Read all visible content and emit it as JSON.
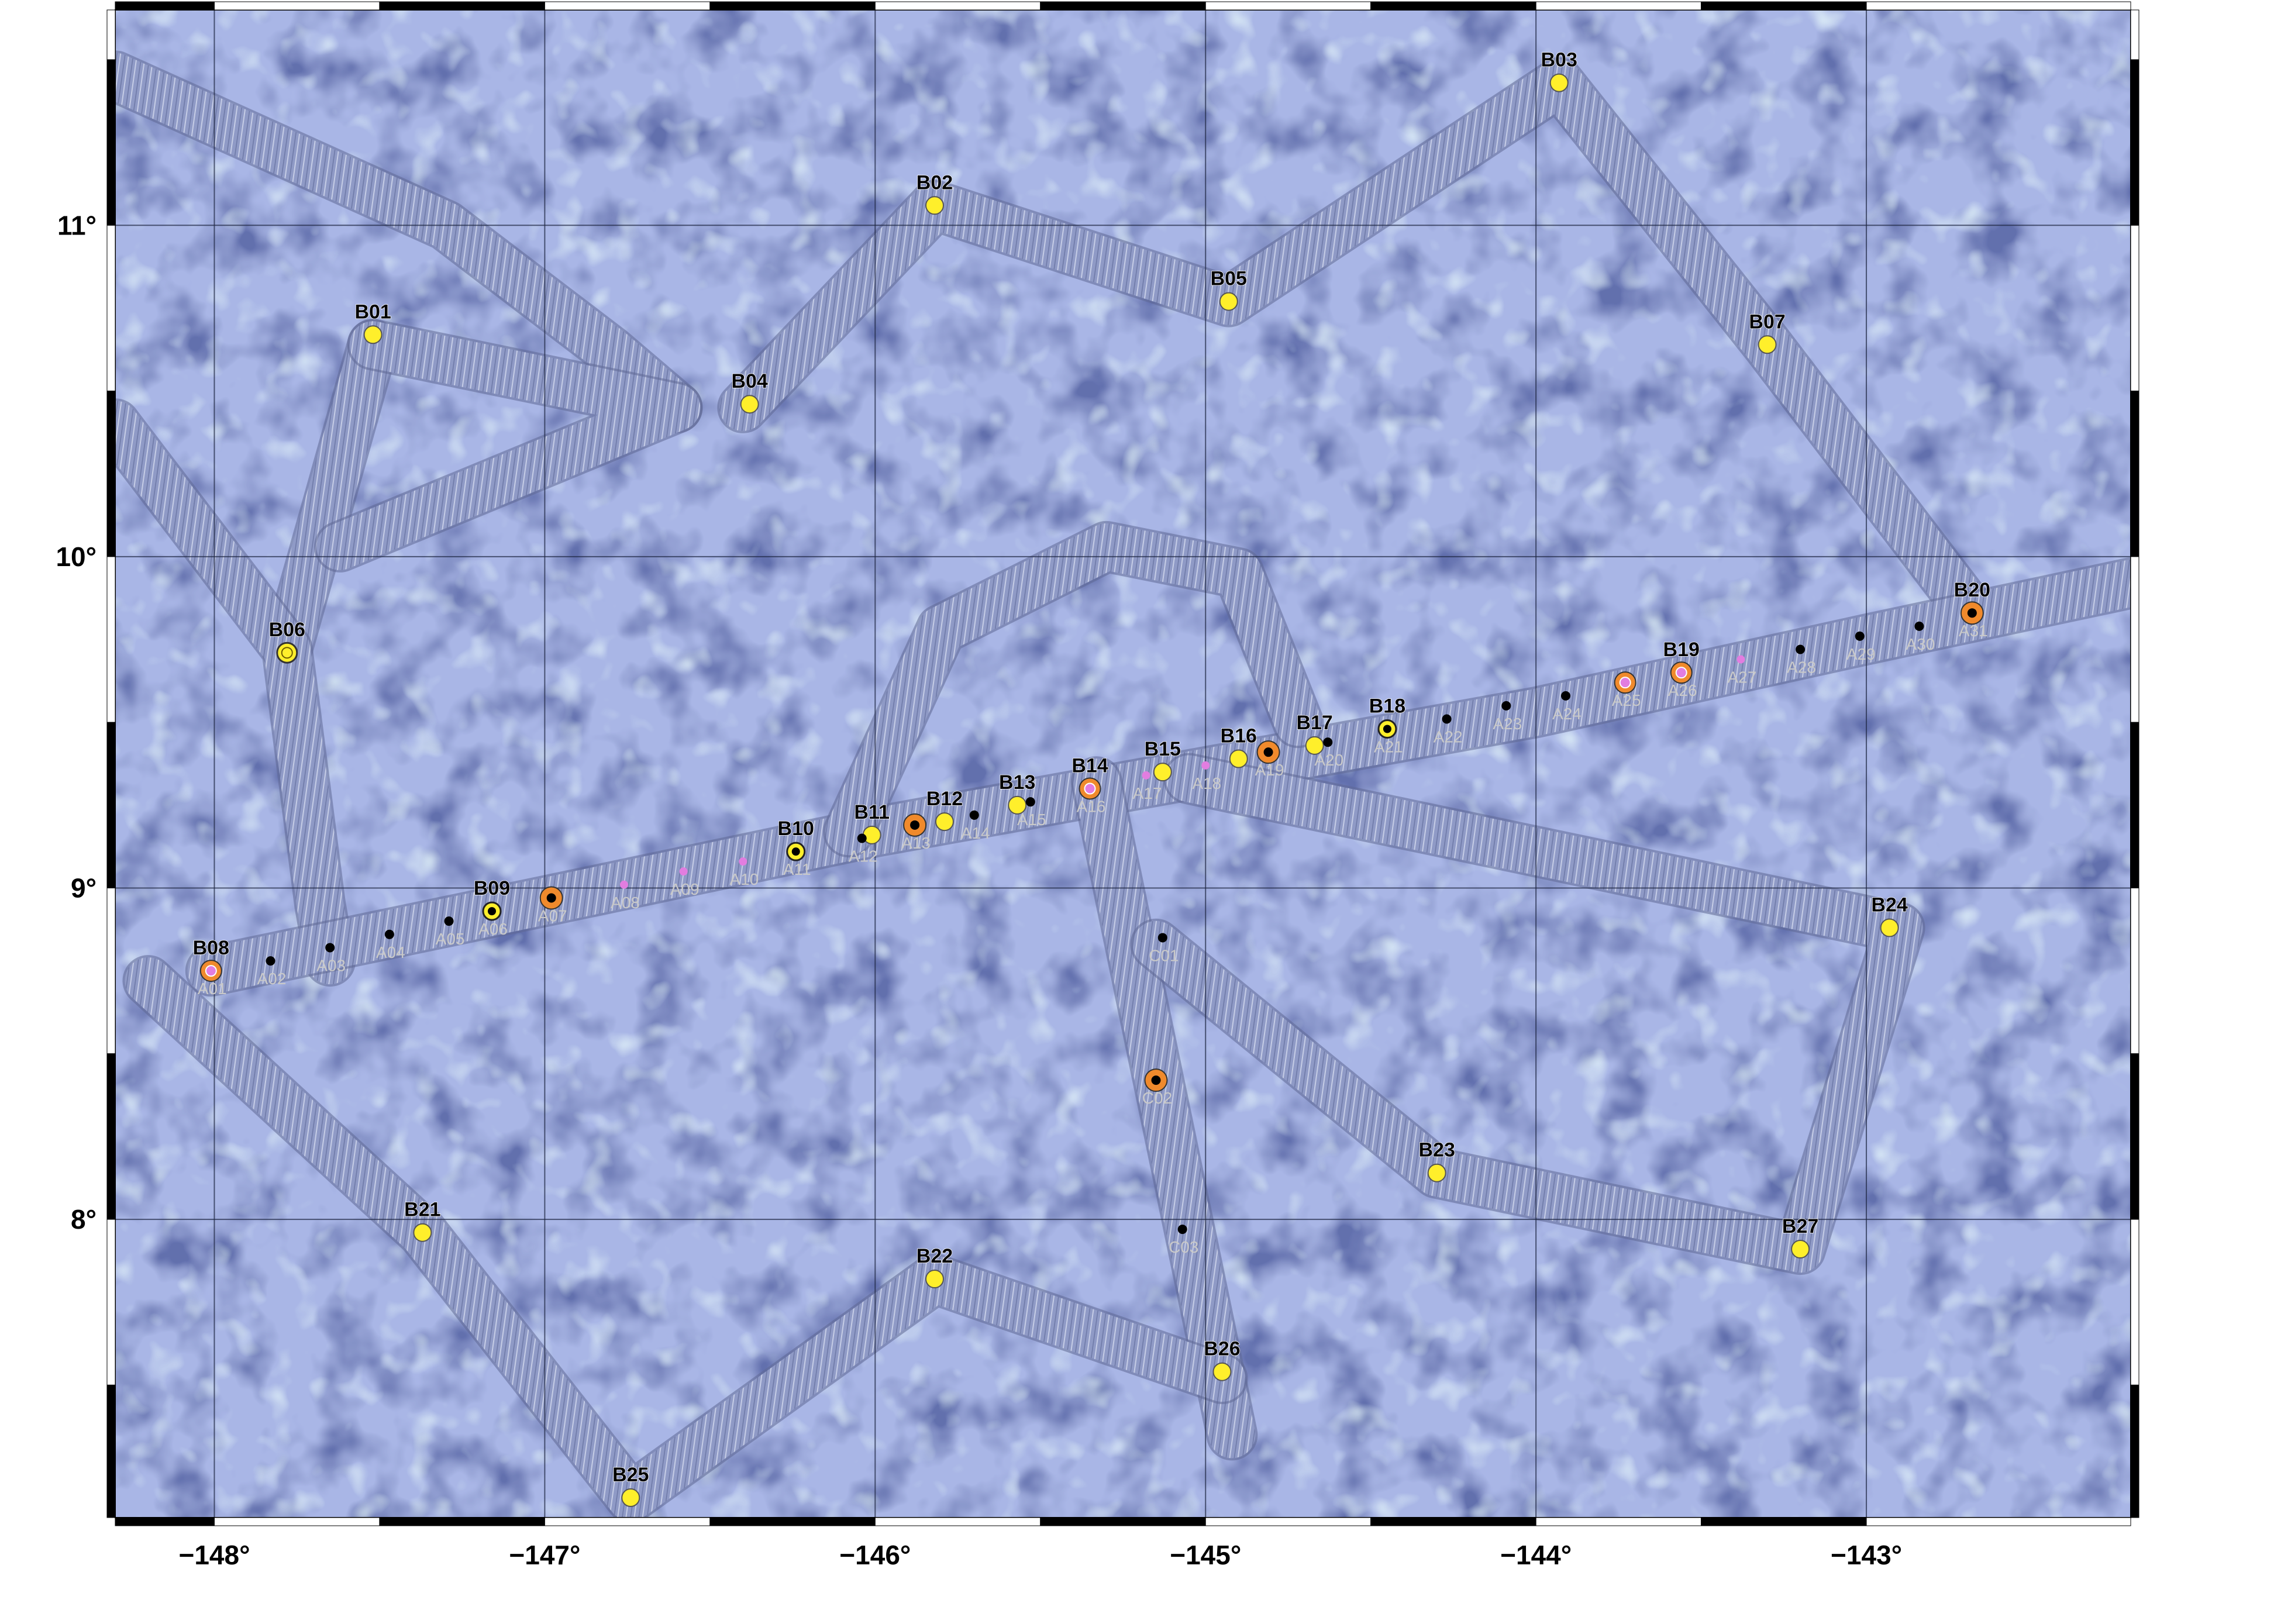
{
  "axes": {
    "lon_labels": [
      "−148°",
      "−147°",
      "−146°",
      "−145°",
      "−144°",
      "−143°"
    ],
    "lat_labels": [
      "8°",
      "9°",
      "10°",
      "11°"
    ],
    "lon_range": [
      -148.3,
      -142.2
    ],
    "lat_range": [
      7.1,
      11.65
    ]
  },
  "colors": {
    "ocean": "#a9b6e6",
    "swath": "#8d98c4",
    "grid": "#1d2540",
    "station_yellow": "#ffef2b",
    "station_orange": "#f08a2c",
    "station_pink": "#e27de0",
    "station_black": "#000000"
  },
  "swath_tracks": [
    [
      [
        -148.3,
        11.45
      ],
      [
        -147.3,
        11.0
      ],
      [
        -146.8,
        10.62
      ],
      [
        -146.6,
        10.45
      ]
    ],
    [
      [
        -147.52,
        10.64
      ],
      [
        -147.78,
        9.72
      ]
    ],
    [
      [
        -147.52,
        10.64
      ],
      [
        -146.6,
        10.45
      ],
      [
        -147.62,
        10.03
      ]
    ],
    [
      [
        -148.3,
        10.4
      ],
      [
        -147.78,
        9.72
      ],
      [
        -147.68,
        8.95
      ],
      [
        -147.65,
        8.78
      ]
    ],
    [
      [
        -146.4,
        10.45
      ],
      [
        -145.82,
        11.06
      ],
      [
        -144.93,
        10.77
      ],
      [
        -143.93,
        11.43
      ],
      [
        -143.3,
        10.64
      ],
      [
        -142.68,
        9.83
      ]
    ],
    [
      [
        -148.01,
        8.75
      ],
      [
        -147.0,
        8.96
      ],
      [
        -146.0,
        9.17
      ],
      [
        -145.0,
        9.35
      ],
      [
        -144.0,
        9.53
      ],
      [
        -143.0,
        9.75
      ],
      [
        -142.2,
        9.92
      ]
    ],
    [
      [
        -146.08,
        9.17
      ],
      [
        -145.8,
        9.78
      ],
      [
        -145.3,
        10.03
      ],
      [
        -144.9,
        9.95
      ],
      [
        -144.72,
        9.5
      ]
    ],
    [
      [
        -145.33,
        9.32
      ],
      [
        -144.92,
        7.35
      ]
    ],
    [
      [
        -145.15,
        8.83
      ],
      [
        -144.3,
        8.14
      ],
      [
        -143.2,
        7.91
      ],
      [
        -142.9,
        8.88
      ],
      [
        -145.05,
        9.33
      ]
    ],
    [
      [
        -148.2,
        8.72
      ],
      [
        -147.37,
        7.96
      ],
      [
        -146.74,
        7.16
      ],
      [
        -145.82,
        7.82
      ],
      [
        -144.95,
        7.52
      ]
    ]
  ],
  "stations": [
    {
      "id": "B01",
      "lon": -147.52,
      "lat": 10.67,
      "kind": "yellow"
    },
    {
      "id": "B02",
      "lon": -145.82,
      "lat": 11.06,
      "kind": "yellow"
    },
    {
      "id": "B03",
      "lon": -143.93,
      "lat": 11.43,
      "kind": "yellow"
    },
    {
      "id": "B04",
      "lon": -146.38,
      "lat": 10.46,
      "kind": "yellow"
    },
    {
      "id": "B05",
      "lon": -144.93,
      "lat": 10.77,
      "kind": "yellow"
    },
    {
      "id": "B06",
      "lon": -147.78,
      "lat": 9.71,
      "kind": "yellow-ring"
    },
    {
      "id": "B07",
      "lon": -143.3,
      "lat": 10.64,
      "kind": "yellow"
    },
    {
      "id": "B08",
      "lon": -148.01,
      "lat": 8.75,
      "kind": "orange-pink"
    },
    {
      "id": "B09",
      "lon": -147.16,
      "lat": 8.93,
      "kind": "yellow-dot"
    },
    {
      "id": "B10",
      "lon": -146.24,
      "lat": 9.11,
      "kind": "yellow-dot"
    },
    {
      "id": "B11",
      "lon": -146.01,
      "lat": 9.16,
      "kind": "yellow"
    },
    {
      "id": "B12",
      "lon": -145.79,
      "lat": 9.2,
      "kind": "yellow"
    },
    {
      "id": "B13",
      "lon": -145.57,
      "lat": 9.25,
      "kind": "yellow"
    },
    {
      "id": "B14",
      "lon": -145.35,
      "lat": 9.3,
      "kind": "orange-pink"
    },
    {
      "id": "B15",
      "lon": -145.13,
      "lat": 9.35,
      "kind": "yellow"
    },
    {
      "id": "B16",
      "lon": -144.9,
      "lat": 9.39,
      "kind": "yellow"
    },
    {
      "id": "B17",
      "lon": -144.67,
      "lat": 9.43,
      "kind": "yellow"
    },
    {
      "id": "B18",
      "lon": -144.45,
      "lat": 9.48,
      "kind": "yellow-dot"
    },
    {
      "id": "B19",
      "lon": -143.56,
      "lat": 9.65,
      "kind": "orange-pink"
    },
    {
      "id": "B20",
      "lon": -142.68,
      "lat": 9.83,
      "kind": "orange-black"
    },
    {
      "id": "B21",
      "lon": -147.37,
      "lat": 7.96,
      "kind": "yellow"
    },
    {
      "id": "B22",
      "lon": -145.82,
      "lat": 7.82,
      "kind": "yellow"
    },
    {
      "id": "B23",
      "lon": -144.3,
      "lat": 8.14,
      "kind": "yellow"
    },
    {
      "id": "B24",
      "lon": -142.93,
      "lat": 8.88,
      "kind": "yellow"
    },
    {
      "id": "B25",
      "lon": -146.74,
      "lat": 7.16,
      "kind": "yellow"
    },
    {
      "id": "B26",
      "lon": -144.95,
      "lat": 7.54,
      "kind": "yellow"
    },
    {
      "id": "B27",
      "lon": -143.2,
      "lat": 7.91,
      "kind": "yellow"
    },
    {
      "id": "A01",
      "lon": -148.01,
      "lat": 8.75,
      "kind": "none"
    },
    {
      "id": "A02",
      "lon": -147.83,
      "lat": 8.78,
      "kind": "black"
    },
    {
      "id": "A03",
      "lon": -147.65,
      "lat": 8.82,
      "kind": "black"
    },
    {
      "id": "A04",
      "lon": -147.47,
      "lat": 8.86,
      "kind": "black"
    },
    {
      "id": "A05",
      "lon": -147.29,
      "lat": 8.9,
      "kind": "black"
    },
    {
      "id": "A06",
      "lon": -147.16,
      "lat": 8.93,
      "kind": "none"
    },
    {
      "id": "A07",
      "lon": -146.98,
      "lat": 8.97,
      "kind": "orange-black"
    },
    {
      "id": "A08",
      "lon": -146.76,
      "lat": 9.01,
      "kind": "pink"
    },
    {
      "id": "A09",
      "lon": -146.58,
      "lat": 9.05,
      "kind": "pink"
    },
    {
      "id": "A10",
      "lon": -146.4,
      "lat": 9.08,
      "kind": "pink"
    },
    {
      "id": "A11",
      "lon": -146.24,
      "lat": 9.11,
      "kind": "none"
    },
    {
      "id": "A12",
      "lon": -146.04,
      "lat": 9.15,
      "kind": "black"
    },
    {
      "id": "A13",
      "lon": -145.88,
      "lat": 9.19,
      "kind": "orange-black"
    },
    {
      "id": "A14",
      "lon": -145.7,
      "lat": 9.22,
      "kind": "black"
    },
    {
      "id": "A15",
      "lon": -145.53,
      "lat": 9.26,
      "kind": "black"
    },
    {
      "id": "A16",
      "lon": -145.35,
      "lat": 9.3,
      "kind": "none"
    },
    {
      "id": "A17",
      "lon": -145.18,
      "lat": 9.34,
      "kind": "pink"
    },
    {
      "id": "A18",
      "lon": -145.0,
      "lat": 9.37,
      "kind": "pink"
    },
    {
      "id": "A19",
      "lon": -144.81,
      "lat": 9.41,
      "kind": "orange-black"
    },
    {
      "id": "A20",
      "lon": -144.63,
      "lat": 9.44,
      "kind": "black"
    },
    {
      "id": "A21",
      "lon": -144.45,
      "lat": 9.48,
      "kind": "none"
    },
    {
      "id": "A22",
      "lon": -144.27,
      "lat": 9.51,
      "kind": "black"
    },
    {
      "id": "A23",
      "lon": -144.09,
      "lat": 9.55,
      "kind": "black"
    },
    {
      "id": "A24",
      "lon": -143.91,
      "lat": 9.58,
      "kind": "black"
    },
    {
      "id": "A25",
      "lon": -143.73,
      "lat": 9.62,
      "kind": "orange-pink"
    },
    {
      "id": "A26",
      "lon": -143.56,
      "lat": 9.65,
      "kind": "none"
    },
    {
      "id": "A27",
      "lon": -143.38,
      "lat": 9.69,
      "kind": "pink"
    },
    {
      "id": "A28",
      "lon": -143.2,
      "lat": 9.72,
      "kind": "black"
    },
    {
      "id": "A29",
      "lon": -143.02,
      "lat": 9.76,
      "kind": "black"
    },
    {
      "id": "A30",
      "lon": -142.84,
      "lat": 9.79,
      "kind": "black"
    },
    {
      "id": "A31",
      "lon": -142.68,
      "lat": 9.83,
      "kind": "none"
    },
    {
      "id": "C01",
      "lon": -145.13,
      "lat": 8.85,
      "kind": "black"
    },
    {
      "id": "C02",
      "lon": -145.15,
      "lat": 8.42,
      "kind": "orange-black"
    },
    {
      "id": "C03",
      "lon": -145.07,
      "lat": 7.97,
      "kind": "black"
    }
  ]
}
